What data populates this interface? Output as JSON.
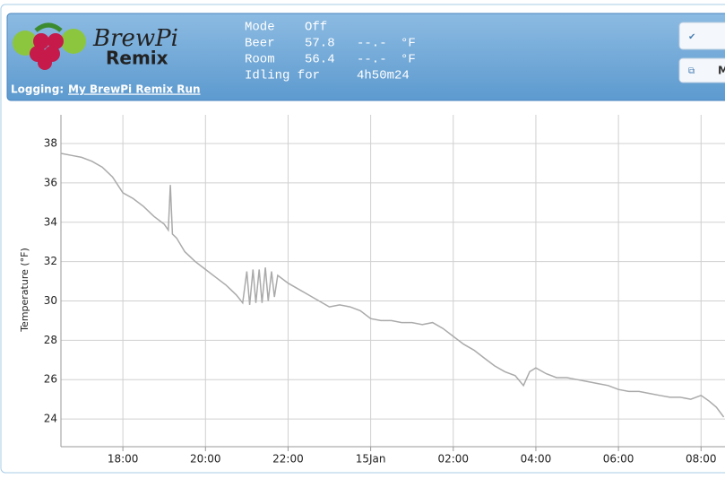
{
  "header": {
    "logo_text": [
      "BrewPi",
      "Remix"
    ],
    "status": [
      [
        "Mode",
        "Off"
      ],
      [
        "Beer",
        "57.8",
        "--.-",
        "°F"
      ],
      [
        "Room",
        "56.4",
        "--.-",
        "°F"
      ],
      [
        "Idling for",
        "4h50m24"
      ]
    ],
    "logging_label": "Logging:",
    "logging_link": "My BrewPi Remix Run",
    "button": "M"
  },
  "chart_data": {
    "type": "line",
    "y_label": "Temperature (°F)",
    "color": "#aaaaaa",
    "grid": true,
    "x": [
      16.5,
      16.75,
      17.0,
      17.25,
      17.5,
      17.75,
      18.0,
      18.25,
      18.5,
      18.75,
      19.0,
      19.1,
      19.15,
      19.2,
      19.3,
      19.5,
      19.75,
      20.0,
      20.25,
      20.5,
      20.75,
      20.9,
      21.0,
      21.07,
      21.15,
      21.22,
      21.3,
      21.37,
      21.45,
      21.52,
      21.6,
      21.67,
      21.75,
      22.0,
      22.25,
      22.5,
      22.75,
      23.0,
      23.25,
      23.5,
      23.75,
      24.0,
      24.25,
      24.5,
      24.75,
      25.0,
      25.25,
      25.5,
      25.75,
      26.0,
      26.25,
      26.5,
      26.75,
      27.0,
      27.25,
      27.5,
      27.7,
      27.85,
      28.0,
      28.25,
      28.5,
      28.75,
      29.0,
      29.25,
      29.5,
      29.75,
      30.0,
      30.25,
      30.5,
      30.75,
      31.0,
      31.25,
      31.5,
      31.75,
      32.0,
      32.2,
      32.37,
      32.55
    ],
    "values": [
      37.5,
      37.4,
      37.3,
      37.1,
      36.8,
      36.3,
      35.5,
      35.2,
      34.8,
      34.3,
      33.9,
      33.6,
      35.9,
      33.4,
      33.2,
      32.5,
      32.0,
      31.6,
      31.2,
      30.8,
      30.3,
      29.9,
      31.5,
      29.8,
      31.6,
      29.9,
      31.6,
      29.9,
      31.7,
      30.0,
      31.5,
      30.2,
      31.3,
      30.9,
      30.6,
      30.3,
      30.0,
      29.7,
      29.8,
      29.7,
      29.5,
      29.1,
      29.0,
      29.0,
      28.9,
      28.9,
      28.8,
      28.9,
      28.6,
      28.2,
      27.8,
      27.5,
      27.1,
      26.7,
      26.4,
      26.2,
      25.7,
      26.4,
      26.6,
      26.3,
      26.1,
      26.1,
      26.0,
      25.9,
      25.8,
      25.7,
      25.5,
      25.4,
      25.4,
      25.3,
      25.2,
      25.1,
      25.1,
      25.0,
      25.2,
      24.9,
      24.6,
      24.1
    ],
    "xlim": [
      16.5,
      32.58
    ],
    "ylim": [
      22.59,
      39.46
    ],
    "xticks": [
      {
        "value": 18,
        "label": "18:00"
      },
      {
        "value": 20,
        "label": "20:00"
      },
      {
        "value": 22,
        "label": "22:00"
      },
      {
        "value": 24,
        "label": "15Jan"
      },
      {
        "value": 26,
        "label": "02:00"
      },
      {
        "value": 28,
        "label": "04:00"
      },
      {
        "value": 30,
        "label": "06:00"
      },
      {
        "value": 32,
        "label": "08:00"
      }
    ],
    "yticks": [
      24,
      26,
      28,
      30,
      32,
      34,
      36,
      38
    ]
  }
}
